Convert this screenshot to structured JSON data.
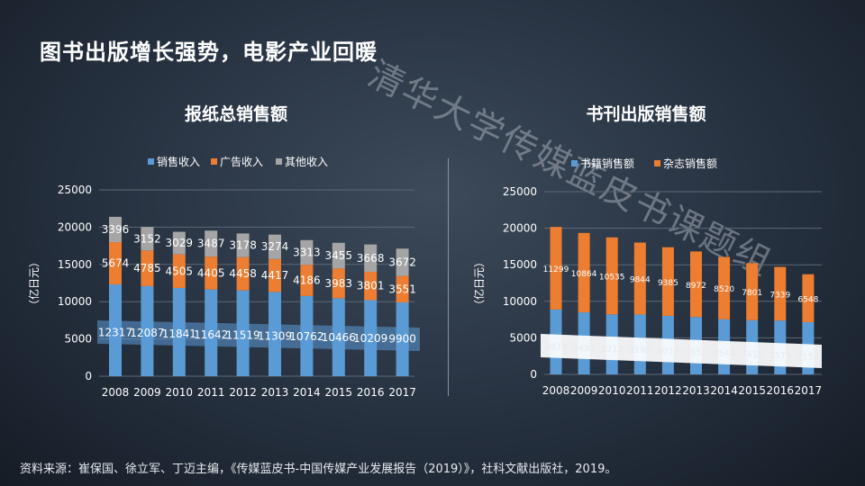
{
  "title": "图书出版增长强势，电影产业回暖",
  "watermark": "清华大学传媒蓝皮书课题组",
  "source": "资料来源：崔保国、徐立军、丁迈主编，《传媒蓝皮书-中国传媒产业发展报告（2019）》，社科文献出版社，2019。",
  "colors": {
    "blue": "#5b9bd5",
    "orange": "#ed7d31",
    "gray": "#a5a5a5"
  },
  "chart_data": [
    {
      "type": "bar",
      "stacked": true,
      "title": "报纸总销售额",
      "ylabel": "（亿日元）",
      "ylim": [
        0,
        25000
      ],
      "yticks": [
        0,
        5000,
        10000,
        15000,
        20000,
        25000
      ],
      "legend_position": "top",
      "categories": [
        "2008",
        "2009",
        "2010",
        "2011",
        "2012",
        "2013",
        "2014",
        "2015",
        "2016",
        "2017"
      ],
      "series": [
        {
          "name": "销售收入",
          "color": "#5b9bd5",
          "values": [
            12317,
            12087,
            11841,
            11642,
            11519,
            11309,
            10762,
            10466,
            10209,
            9900
          ]
        },
        {
          "name": "广告收入",
          "color": "#ed7d31",
          "values": [
            5674,
            4785,
            4505,
            4405,
            4458,
            4417,
            4186,
            3983,
            3801,
            3551
          ]
        },
        {
          "name": "其他收入",
          "color": "#a5a5a5",
          "values": [
            3396,
            3152,
            3029,
            3487,
            3178,
            3274,
            3313,
            3455,
            3668,
            3672
          ]
        }
      ]
    },
    {
      "type": "bar",
      "stacked": true,
      "title": "书刊出版销售额",
      "ylabel": "（亿日元）",
      "ylim": [
        0,
        25000
      ],
      "yticks": [
        0,
        5000,
        10000,
        15000,
        20000,
        25000
      ],
      "legend_position": "top",
      "categories": [
        "2008",
        "2009",
        "2010",
        "2011",
        "2012",
        "2013",
        "2014",
        "2015",
        "2016",
        "2017"
      ],
      "series": [
        {
          "name": "书籍销售额",
          "color": "#5b9bd5",
          "values": [
            8878,
            8492,
            8213,
            8198,
            8013,
            7851,
            7544,
            7419,
            7370,
            7152
          ]
        },
        {
          "name": "杂志销售额",
          "color": "#ed7d31",
          "values": [
            11299,
            10864,
            10535,
            9844,
            9385,
            8972,
            8520,
            7801,
            7339,
            6548
          ]
        }
      ]
    }
  ]
}
